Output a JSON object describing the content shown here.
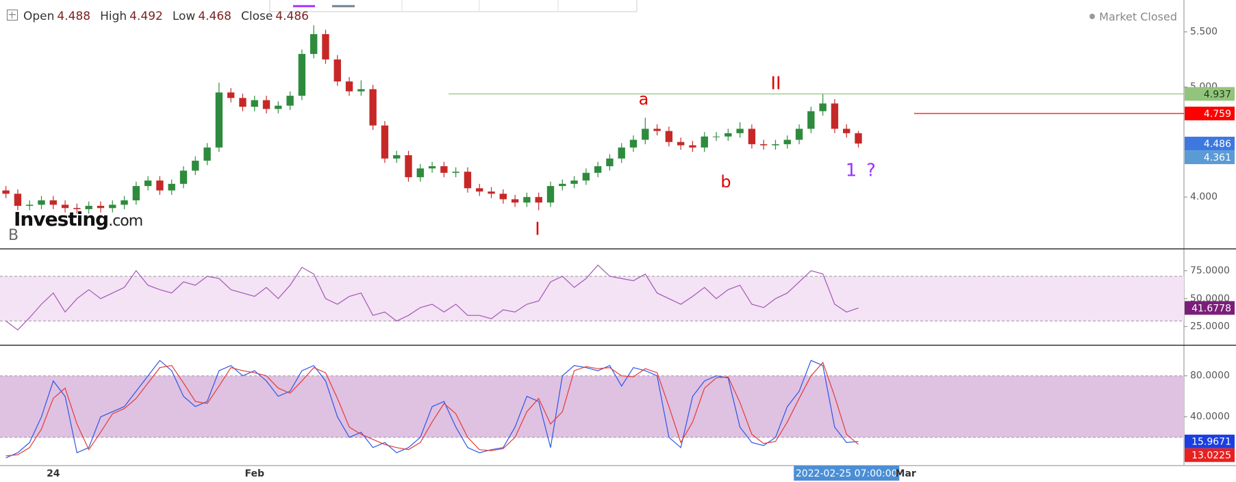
{
  "header": {
    "open_label": "Open",
    "open": 4.488,
    "high_label": "High",
    "high": 4.492,
    "low_label": "Low",
    "low": 4.468,
    "close_label": "Close",
    "close": 4.486,
    "status": "Market Closed",
    "logo_name": "Investing",
    "logo_suffix": ".com",
    "corner_letter": "B"
  },
  "chart_data": [
    {
      "type": "candlestick",
      "up_color": "#2e8b3d",
      "down_color": "#c62828",
      "last_price_color": "#3d78e0",
      "ylim": [
        3.61,
        5.79
      ],
      "yticks": [
        {
          "value": 4,
          "label": "4.000"
        },
        {
          "value": 5,
          "label": "5.000"
        },
        {
          "value": 5.5,
          "label": "5.500"
        }
      ],
      "open": [
        4.06,
        4.03,
        3.92,
        3.93,
        3.97,
        3.93,
        3.9,
        3.89,
        3.92,
        3.9,
        3.93,
        3.97,
        4.1,
        4.15,
        4.06,
        4.12,
        4.24,
        4.33,
        4.45,
        4.95,
        4.9,
        4.82,
        4.88,
        4.8,
        4.83,
        4.92,
        5.3,
        5.48,
        5.25,
        5.05,
        4.96,
        4.98,
        4.65,
        4.35,
        4.38,
        4.18,
        4.26,
        4.28,
        4.22,
        4.23,
        4.08,
        4.05,
        4.03,
        3.98,
        3.95,
        4.0,
        3.95,
        4.1,
        4.12,
        4.15,
        4.22,
        4.28,
        4.35,
        4.45,
        4.52,
        4.62,
        4.6,
        4.5,
        4.47,
        4.45,
        4.55,
        4.55,
        4.58,
        4.62,
        4.48,
        4.47,
        4.48,
        4.52,
        4.62,
        4.78,
        4.85,
        4.62,
        4.58,
        null,
        null,
        null,
        null,
        null,
        null,
        null,
        null,
        null,
        null,
        null,
        null,
        null,
        null,
        null,
        null,
        null,
        null,
        null,
        null,
        null,
        null,
        null,
        null,
        null,
        null,
        null
      ],
      "high": [
        4.1,
        4.07,
        3.97,
        4.01,
        4.01,
        3.97,
        3.94,
        3.96,
        3.96,
        3.97,
        4.01,
        4.14,
        4.19,
        4.19,
        4.16,
        4.28,
        4.37,
        4.49,
        5.04,
        4.99,
        4.94,
        4.92,
        4.92,
        4.87,
        4.96,
        5.34,
        5.56,
        5.52,
        5.29,
        5.09,
        5.06,
        5.02,
        4.69,
        4.42,
        4.42,
        4.3,
        4.32,
        4.32,
        4.27,
        4.27,
        4.12,
        4.09,
        4.07,
        4.02,
        4.04,
        4.04,
        4.14,
        4.16,
        4.19,
        4.26,
        4.32,
        4.39,
        4.49,
        4.56,
        4.72,
        4.66,
        4.64,
        4.54,
        4.51,
        4.59,
        4.59,
        4.62,
        4.68,
        4.66,
        4.52,
        4.52,
        4.56,
        4.66,
        4.82,
        4.94,
        4.89,
        4.66,
        4.6,
        null,
        null,
        null,
        null,
        null,
        null,
        null,
        null,
        null,
        null,
        null,
        null,
        null,
        null,
        null,
        null,
        null,
        null,
        null,
        null,
        null,
        null,
        null,
        null,
        null,
        null,
        null
      ],
      "low": [
        3.99,
        3.88,
        3.88,
        3.89,
        3.89,
        3.86,
        3.85,
        3.85,
        3.86,
        3.86,
        3.89,
        3.93,
        4.06,
        4.02,
        4.02,
        4.08,
        4.2,
        4.29,
        4.41,
        4.86,
        4.78,
        4.78,
        4.76,
        4.76,
        4.79,
        4.88,
        5.26,
        5.21,
        5.01,
        4.92,
        4.92,
        4.61,
        4.31,
        4.31,
        4.14,
        4.14,
        4.22,
        4.18,
        4.18,
        4.04,
        4.01,
        3.99,
        3.94,
        3.91,
        3.91,
        3.88,
        3.91,
        4.06,
        4.08,
        4.11,
        4.18,
        4.24,
        4.31,
        4.41,
        4.48,
        4.56,
        4.46,
        4.43,
        4.41,
        4.41,
        4.51,
        4.51,
        4.54,
        4.44,
        4.43,
        4.43,
        4.44,
        4.48,
        4.58,
        4.74,
        4.58,
        4.54,
        4.45,
        null,
        null,
        null,
        null,
        null,
        null,
        null,
        null,
        null,
        null,
        null,
        null,
        null,
        null,
        null,
        null,
        null,
        null,
        null,
        null,
        null,
        null,
        null,
        null,
        null,
        null,
        null
      ],
      "close": [
        4.03,
        3.92,
        3.93,
        3.97,
        3.93,
        3.9,
        3.89,
        3.92,
        3.9,
        3.93,
        3.97,
        4.1,
        4.15,
        4.06,
        4.12,
        4.24,
        4.33,
        4.45,
        4.95,
        4.9,
        4.82,
        4.88,
        4.8,
        4.83,
        4.92,
        5.3,
        5.48,
        5.25,
        5.05,
        4.96,
        4.98,
        4.65,
        4.35,
        4.38,
        4.18,
        4.26,
        4.28,
        4.22,
        4.23,
        4.08,
        4.05,
        4.03,
        3.98,
        3.95,
        4.0,
        3.95,
        4.1,
        4.12,
        4.15,
        4.22,
        4.28,
        4.35,
        4.45,
        4.52,
        4.62,
        4.6,
        4.5,
        4.47,
        4.45,
        4.55,
        4.55,
        4.58,
        4.62,
        4.48,
        4.47,
        4.48,
        4.52,
        4.62,
        4.78,
        4.85,
        4.62,
        4.58,
        4.486,
        null,
        null,
        null,
        null,
        null,
        null,
        null,
        null,
        null,
        null,
        null,
        null,
        null,
        null,
        null,
        null,
        null,
        null,
        null,
        null,
        null,
        null,
        null,
        null,
        null,
        null,
        null
      ],
      "levels": [
        {
          "value": 4.937,
          "color": "#93c47d",
          "text_color": "#1d3b12",
          "line": true
        },
        {
          "value": 4.759,
          "color": "#ff0000",
          "text_color": "#ffffff",
          "line": true
        },
        {
          "value": 4.361,
          "color": "#5b9bd5",
          "text_color": "#ffffff",
          "line": false
        }
      ],
      "annotations": [
        {
          "text": "a",
          "color": "#e00000"
        },
        {
          "text": "II",
          "color": "#e00000"
        },
        {
          "text": "b",
          "color": "#e00000"
        },
        {
          "text": "I",
          "color": "#e00000"
        },
        {
          "text": "1",
          "color": "#9b30ff"
        },
        {
          "text": "?",
          "color": "#9b30ff"
        }
      ]
    },
    {
      "type": "line",
      "ylim": [
        9.5,
        93.3
      ],
      "yticks": [
        {
          "value": 25,
          "label": "25.0000"
        },
        {
          "value": 50,
          "label": "50.0000"
        },
        {
          "value": 75,
          "label": "75.0000"
        }
      ],
      "band": [
        30,
        70
      ],
      "band_color": "#f3e3f4",
      "series": [
        {
          "color": "#a455b8",
          "label_color": "#7b1e7a",
          "values": [
            30,
            22,
            33,
            45,
            55,
            38,
            50,
            58,
            50,
            55,
            60,
            75,
            62,
            58,
            55,
            65,
            62,
            70,
            68,
            58,
            55,
            52,
            60,
            50,
            62,
            78,
            72,
            50,
            45,
            52,
            55,
            35,
            38,
            30,
            35,
            42,
            45,
            38,
            45,
            35,
            35,
            32,
            40,
            38,
            45,
            48,
            65,
            70,
            60,
            68,
            80,
            70,
            68,
            66,
            72,
            55,
            50,
            45,
            52,
            60,
            50,
            58,
            62,
            45,
            42,
            50,
            55,
            65,
            75,
            72,
            45,
            38,
            41.6778,
            null,
            null,
            null,
            null,
            null,
            null,
            null,
            null,
            null,
            null,
            null,
            null,
            null,
            null,
            null,
            null,
            null,
            null,
            null,
            null,
            null,
            null,
            null,
            null,
            null,
            null,
            null
          ]
        }
      ]
    },
    {
      "type": "line",
      "ylim": [
        -6.9,
        108.5
      ],
      "yticks": [
        {
          "value": 40,
          "label": "40.0000"
        },
        {
          "value": 80,
          "label": "80.0000"
        }
      ],
      "band": [
        20,
        80
      ],
      "band_color": "#dfc1e2",
      "categories": [
        null,
        null,
        null,
        null,
        "24",
        null,
        null,
        null,
        null,
        null,
        null,
        null,
        null,
        null,
        null,
        null,
        null,
        null,
        null,
        null,
        null,
        "Feb",
        null,
        null,
        null,
        null,
        null,
        null,
        null,
        null,
        null,
        null,
        null,
        null,
        null,
        null,
        null,
        null,
        null,
        null,
        null,
        null,
        null,
        null,
        null,
        null,
        null,
        null,
        null,
        null,
        null,
        null,
        null,
        null,
        null,
        null,
        null,
        null,
        null,
        null,
        null,
        null,
        null,
        null,
        null,
        null,
        null,
        null,
        null,
        null,
        null,
        "2022-02-25 07:00:00",
        null,
        null,
        null,
        null,
        "Mar",
        null,
        null,
        null,
        null,
        null,
        null,
        null,
        null,
        null,
        null,
        null,
        null,
        null,
        null,
        null,
        null,
        null,
        null,
        null,
        null,
        null,
        null,
        null
      ],
      "series": [
        {
          "color": "#2b55e6",
          "label_color": "#1a3fe0",
          "values": [
            0,
            5,
            15,
            40,
            75,
            60,
            5,
            10,
            40,
            45,
            50,
            65,
            80,
            95,
            85,
            60,
            50,
            55,
            85,
            90,
            80,
            85,
            75,
            60,
            65,
            85,
            90,
            75,
            40,
            20,
            25,
            10,
            15,
            5,
            10,
            20,
            50,
            55,
            30,
            10,
            5,
            8,
            10,
            30,
            60,
            55,
            10,
            80,
            90,
            88,
            85,
            90,
            70,
            88,
            85,
            80,
            20,
            10,
            60,
            75,
            80,
            78,
            30,
            15,
            12,
            20,
            50,
            65,
            95,
            90,
            30,
            15,
            15.9671,
            null,
            null,
            null,
            null,
            null,
            null,
            null,
            null,
            null,
            null,
            null,
            null,
            null,
            null,
            null,
            null,
            null,
            null,
            null,
            null,
            null,
            null,
            null,
            null,
            null,
            null,
            null
          ]
        },
        {
          "color": "#e53935",
          "label_color": "#e82020",
          "values": [
            2,
            3,
            10,
            28,
            58,
            68,
            33,
            8,
            25,
            43,
            48,
            58,
            73,
            88,
            90,
            73,
            55,
            53,
            70,
            88,
            85,
            83,
            80,
            68,
            63,
            75,
            88,
            83,
            58,
            30,
            23,
            18,
            13,
            10,
            8,
            15,
            35,
            53,
            43,
            20,
            8,
            7,
            9,
            20,
            45,
            58,
            33,
            45,
            85,
            89,
            87,
            88,
            80,
            79,
            87,
            83,
            50,
            15,
            35,
            68,
            78,
            79,
            54,
            23,
            14,
            16,
            35,
            58,
            80,
            93,
            60,
            23,
            13.0225,
            null,
            null,
            null,
            null,
            null,
            null,
            null,
            null,
            null,
            null,
            null,
            null,
            null,
            null,
            null,
            null,
            null,
            null,
            null,
            null,
            null,
            null,
            null,
            null,
            null,
            null,
            null
          ]
        }
      ]
    }
  ]
}
